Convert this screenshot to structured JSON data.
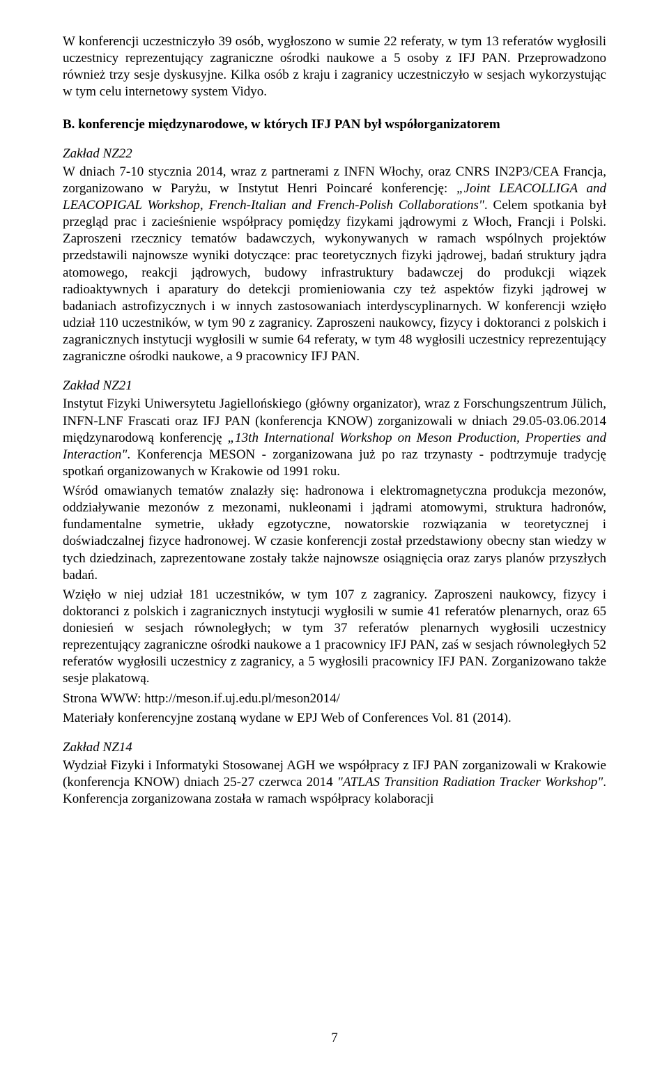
{
  "para1": "W konferencji uczestniczyło 39 osób, wygłoszono w sumie 22 referaty, w tym 13 referatów wygłosili uczestnicy reprezentujący zagraniczne ośrodki naukowe a 5 osoby z IFJ PAN. Przeprowadzono również trzy sesje dyskusyjne. Kilka osób z kraju i zagranicy uczestniczyło w sesjach wykorzystując w tym celu internetowy system Vidyo.",
  "headingB": "B. konferencje międzynarodowe, w których IFJ PAN był współorganizatorem",
  "nz22_label": "Zakład NZ22",
  "nz22_p1_a": "W dniach 7-10 stycznia 2014, wraz z partnerami z INFN Włochy, oraz CNRS IN2P3/CEA Francja, zorganizowano w Paryżu, w Instytut Henri Poincaré konferencję: ",
  "nz22_p1_it1": "„Joint LEACOLLIGA and LEACOPIGAL Workshop, French-Italian and French-Polish Collaborations\"",
  "nz22_p1_b": ". Celem spotkania był przegląd prac i zacieśnienie współpracy pomiędzy fizykami jądrowymi z Włoch, Francji i Polski. Zaproszeni rzecznicy tematów badawczych, wykonywanych w ramach wspólnych projektów przedstawili najnowsze wyniki dotyczące: prac teoretycznych fizyki jądrowej, badań struktury jądra atomowego, reakcji jądrowych, budowy infrastruktury badawczej do produkcji wiązek radioaktywnych i aparatury do detekcji promieniowania czy też aspektów fizyki jądrowej w badaniach astrofizycznych i w innych zastosowaniach interdyscyplinarnych.  W konferencji wzięło udział 110  uczestników, w tym 90  z zagranicy. Zaproszeni naukowcy, fizycy i doktoranci z polskich i zagranicznych instytucji wygłosili w sumie 64  referaty, w tym 48 wygłosili uczestnicy reprezentujący zagraniczne ośrodki naukowe, a 9 pracownicy IFJ PAN.",
  "nz21_label": "Zakład NZ21",
  "nz21_p1_a": "Instytut Fizyki Uniwersytetu Jagiellońskiego (główny organizator), wraz z Forschungszentrum Jülich, INFN-LNF Frascati oraz IFJ PAN (konferencja KNOW) zorganizowali w dniach  29.05-03.06.2014 międzynarodową konferencję ",
  "nz21_p1_it": "„13th International Workshop on Meson Production, Properties and Interaction\"",
  "nz21_p1_b": ". Konferencja MESON - zorganizowana już po raz trzynasty - podtrzymuje tradycję spotkań organizowanych w Krakowie od 1991 roku.",
  "nz21_p2": "Wśród omawianych tematów znalazły się: hadronowa i elektromagnetyczna produkcja mezonów, oddziaływanie mezonów z mezonami, nukleonami i jądrami atomowymi, struktura hadronów, fundamentalne symetrie, układy egzotyczne, nowatorskie rozwiązania w teoretycznej i doświadczalnej fizyce hadronowej. W czasie konferencji został przedstawiony obecny stan wiedzy w tych dziedzinach, zaprezentowane zostały także najnowsze osiągnięcia oraz zarys planów przyszłych badań.",
  "nz21_p3": "Wzięło w niej udział 181 uczestników, w tym 107 z zagranicy. Zaproszeni naukowcy, fizycy i doktoranci z polskich i zagranicznych instytucji wygłosili w sumie 41 referatów plenarnych, oraz 65 doniesień w sesjach równoległych; w tym 37 referatów plenarnych wygłosili uczestnicy reprezentujący zagraniczne ośrodki naukowe a 1 pracownicy IFJ PAN, zaś w sesjach równoległych 52 referatów wygłosili uczestnicy z zagranicy, a 5 wygłosili pracownicy IFJ PAN. Zorganizowano także sesje plakatową.",
  "nz21_p4": "Strona WWW: http://meson.if.uj.edu.pl/meson2014/",
  "nz21_p5": "Materiały konferencyjne zostaną wydane w EPJ Web of Conferences Vol. 81 (2014).",
  "nz14_label": "Zakład NZ14",
  "nz14_p1_a": "Wydział Fizyki i Informatyki Stosowanej AGH we współpracy z IFJ PAN zorganizowali w Krakowie (konferencja KNOW) dniach 25-27 czerwca 2014 ",
  "nz14_p1_it": "\"ATLAS Transition Radiation Tracker Workshop\"",
  "nz14_p1_b": ".  Konferencja zorganizowana została w ramach współpracy kolaboracji",
  "page_number": "7"
}
